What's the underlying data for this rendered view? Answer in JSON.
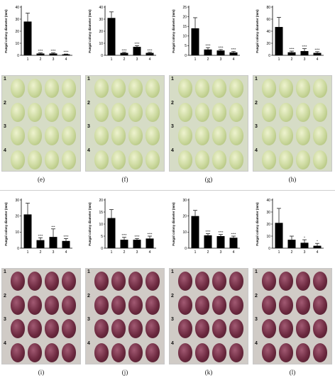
{
  "figure": {
    "rows": [
      {
        "panels": [
          {
            "caption": "(e)",
            "fruit": "green"
          },
          {
            "caption": "(f)",
            "fruit": "green"
          },
          {
            "caption": "(g)",
            "fruit": "green"
          },
          {
            "caption": "(h)",
            "fruit": "green"
          }
        ]
      },
      {
        "panels": [
          {
            "caption": "(i)",
            "fruit": "red"
          },
          {
            "caption": "(j)",
            "fruit": "red"
          },
          {
            "caption": "(k)",
            "fruit": "red"
          },
          {
            "caption": "(l)",
            "fruit": "red"
          }
        ]
      }
    ],
    "photo_row_labels": [
      "1",
      "2",
      "3",
      "4"
    ]
  },
  "chart_data": [
    {
      "type": "bar",
      "panel": "e",
      "title": "",
      "xlabel": "",
      "ylabel": "Fungal colony diameter (mm)",
      "ylim": [
        0,
        40
      ],
      "yticks": [
        "0",
        "10",
        "20",
        "30",
        "40"
      ],
      "categories": [
        "1",
        "2",
        "3",
        "4"
      ],
      "values": [
        28,
        1.5,
        1.5,
        0.8
      ],
      "errors": [
        7,
        0.5,
        0.5,
        0.3
      ],
      "significance": [
        "",
        "****",
        "****",
        "****"
      ],
      "grid": false
    },
    {
      "type": "bar",
      "panel": "f",
      "title": "",
      "xlabel": "",
      "ylabel": "Fungal colony diameter (mm)",
      "ylim": [
        0,
        40
      ],
      "yticks": [
        "0",
        "10",
        "20",
        "30",
        "40"
      ],
      "categories": [
        "1",
        "2",
        "3",
        "4"
      ],
      "values": [
        31,
        2,
        7,
        2
      ],
      "errors": [
        5,
        0.5,
        1,
        0.5
      ],
      "significance": [
        "",
        "****",
        "****",
        "****"
      ],
      "grid": false
    },
    {
      "type": "bar",
      "panel": "g",
      "title": "",
      "xlabel": "",
      "ylabel": "Fungal colony diameter (mm)",
      "ylim": [
        0,
        25
      ],
      "yticks": [
        "0",
        "5",
        "10",
        "15",
        "20",
        "25"
      ],
      "categories": [
        "1",
        "2",
        "3",
        "4"
      ],
      "values": [
        14,
        3,
        2.5,
        1.5
      ],
      "errors": [
        5.5,
        1,
        0.5,
        0.5
      ],
      "significance": [
        "",
        "****",
        "****",
        "****"
      ],
      "grid": false
    },
    {
      "type": "bar",
      "panel": "h",
      "title": "",
      "xlabel": "",
      "ylabel": "Fungal colony diameter (mm)",
      "ylim": [
        0,
        80
      ],
      "yticks": [
        "0",
        "20",
        "40",
        "60",
        "80"
      ],
      "categories": [
        "1",
        "2",
        "3",
        "4"
      ],
      "values": [
        47,
        5,
        7,
        4
      ],
      "errors": [
        16,
        2,
        4,
        2
      ],
      "significance": [
        "",
        "****",
        "****",
        "****"
      ],
      "grid": false
    },
    {
      "type": "bar",
      "panel": "i",
      "title": "",
      "xlabel": "",
      "ylabel": "Fungal colony diameter (mm)",
      "ylim": [
        0,
        30
      ],
      "yticks": [
        "0",
        "10",
        "20",
        "30"
      ],
      "categories": [
        "1",
        "2",
        "3",
        "4"
      ],
      "values": [
        21,
        5,
        7,
        4.5
      ],
      "errors": [
        7,
        1.5,
        5,
        1.5
      ],
      "significance": [
        "",
        "****",
        "***",
        "****"
      ],
      "grid": false
    },
    {
      "type": "bar",
      "panel": "j",
      "title": "",
      "xlabel": "",
      "ylabel": "Fungal colony diameter (mm)",
      "ylim": [
        0,
        20
      ],
      "yticks": [
        "0",
        "5",
        "10",
        "15",
        "20"
      ],
      "categories": [
        "1",
        "2",
        "3",
        "4"
      ],
      "values": [
        12.5,
        3.5,
        3.5,
        4
      ],
      "errors": [
        3.5,
        1,
        0.5,
        1
      ],
      "significance": [
        "",
        "****",
        "****",
        "****"
      ],
      "grid": false
    },
    {
      "type": "bar",
      "panel": "k",
      "title": "",
      "xlabel": "",
      "ylabel": "Fungal colony diameter (mm)",
      "ylim": [
        0,
        30
      ],
      "yticks": [
        "0",
        "10",
        "20",
        "30"
      ],
      "categories": [
        "1",
        "2",
        "3",
        "4"
      ],
      "values": [
        20,
        8,
        7.5,
        6.5
      ],
      "errors": [
        3.5,
        1,
        1,
        1
      ],
      "significance": [
        "",
        "****",
        "****",
        "****"
      ],
      "grid": false
    },
    {
      "type": "bar",
      "panel": "l",
      "title": "",
      "xlabel": "",
      "ylabel": "Fungal colony diameter (mm)",
      "ylim": [
        0,
        40
      ],
      "yticks": [
        "0",
        "10",
        "20",
        "30",
        "40"
      ],
      "categories": [
        "1",
        "2",
        "3",
        "4"
      ],
      "values": [
        21,
        7,
        4.5,
        2
      ],
      "errors": [
        12,
        3,
        2.5,
        2
      ],
      "significance": [
        "",
        "",
        "*",
        "*"
      ],
      "grid": false
    }
  ]
}
